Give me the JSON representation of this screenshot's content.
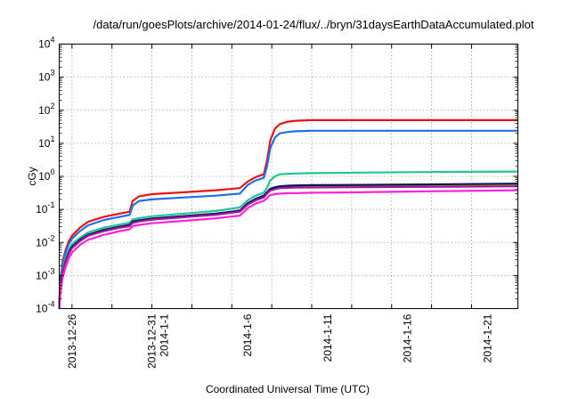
{
  "chart_data": {
    "type": "line",
    "title": "/data/run/goesPlots/archive/2014-01-24/flux/../bryn/31daysEarthDataAccumulated.plot",
    "xlabel": "Coordinated Universal Time (UTC)",
    "ylabel": "cGy",
    "yscale": "log",
    "ylim": [
      0.0001,
      10000
    ],
    "xlim": [
      -0.8,
      27.9
    ],
    "grid": true,
    "legend": "none",
    "y_ticks": [
      {
        "value": 0.0001,
        "base": "10",
        "exp": "-4"
      },
      {
        "value": 0.001,
        "base": "10",
        "exp": "-3"
      },
      {
        "value": 0.01,
        "base": "10",
        "exp": "-2"
      },
      {
        "value": 0.1,
        "base": "10",
        "exp": "-1"
      },
      {
        "value": 1,
        "base": "10",
        "exp": "0"
      },
      {
        "value": 10,
        "base": "10",
        "exp": "1"
      },
      {
        "value": 100,
        "base": "10",
        "exp": "2"
      },
      {
        "value": 1000,
        "base": "10",
        "exp": "3"
      },
      {
        "value": 10000,
        "base": "10",
        "exp": "4"
      }
    ],
    "x_ticks": [
      {
        "value": 0,
        "label": "2013-12-26",
        "sub": ""
      },
      {
        "value": 5,
        "label": "2013-12-31",
        "sub": "2014-1-1"
      },
      {
        "value": 11,
        "label": "2014-1-6",
        "sub": ""
      },
      {
        "value": 16,
        "label": "2014-1-11",
        "sub": ""
      },
      {
        "value": 21,
        "label": "2014-1-16",
        "sub": ""
      },
      {
        "value": 26,
        "label": "2014-1-21",
        "sub": ""
      }
    ],
    "x_grid": [
      0,
      2.5,
      5,
      7.5,
      10,
      12.5,
      15,
      17.5,
      20,
      22.5,
      25
    ],
    "series": [
      {
        "name": "red",
        "color": "#ee1111",
        "x": [
          -0.8,
          -0.75,
          -0.6,
          -0.4,
          -0.2,
          0,
          0.5,
          1,
          2,
          3,
          3.6,
          3.8,
          4.2,
          5,
          7,
          9,
          10.5,
          11.0,
          11.5,
          12.0,
          12.2,
          12.4,
          12.7,
          13,
          13.5,
          14,
          15,
          18,
          22,
          27.9
        ],
        "y": [
          0.0001,
          0.0006,
          0.0025,
          0.006,
          0.011,
          0.016,
          0.028,
          0.042,
          0.06,
          0.075,
          0.085,
          0.18,
          0.25,
          0.29,
          0.33,
          0.38,
          0.44,
          0.7,
          0.95,
          1.15,
          3,
          12,
          28,
          38,
          45,
          48,
          50,
          50,
          50,
          50
        ]
      },
      {
        "name": "blue",
        "color": "#1f6fe8",
        "x": [
          -0.8,
          -0.75,
          -0.6,
          -0.4,
          -0.2,
          0,
          0.5,
          1,
          2,
          3,
          3.6,
          3.8,
          4.2,
          5,
          7,
          9,
          10.5,
          11.0,
          11.5,
          12.0,
          12.2,
          12.4,
          12.7,
          13,
          13.5,
          14,
          15,
          18,
          22,
          27.9
        ],
        "y": [
          0.0001,
          0.0005,
          0.002,
          0.005,
          0.009,
          0.013,
          0.022,
          0.033,
          0.048,
          0.06,
          0.068,
          0.13,
          0.18,
          0.2,
          0.23,
          0.26,
          0.3,
          0.55,
          0.75,
          0.9,
          2,
          7,
          15,
          20,
          22,
          23,
          24,
          24,
          24,
          24
        ]
      },
      {
        "name": "green",
        "color": "#22c49a",
        "x": [
          -0.8,
          -0.75,
          -0.6,
          -0.4,
          -0.2,
          0,
          0.5,
          1,
          2,
          3,
          3.6,
          3.8,
          4.2,
          5,
          7,
          9,
          10.5,
          11.0,
          11.5,
          12.0,
          12.2,
          12.4,
          12.7,
          13,
          13.5,
          14,
          15,
          18,
          22,
          27.9
        ],
        "y": [
          0.0001,
          0.0004,
          0.0015,
          0.0035,
          0.006,
          0.009,
          0.014,
          0.02,
          0.028,
          0.035,
          0.04,
          0.05,
          0.055,
          0.062,
          0.075,
          0.09,
          0.115,
          0.19,
          0.26,
          0.32,
          0.45,
          0.75,
          1.0,
          1.15,
          1.2,
          1.22,
          1.25,
          1.3,
          1.35,
          1.4
        ]
      },
      {
        "name": "olive",
        "color": "#b5a400",
        "x": [
          -0.8,
          -0.75,
          -0.6,
          -0.4,
          -0.2,
          0,
          0.5,
          1,
          2,
          3,
          3.6,
          3.8,
          4.2,
          5,
          7,
          9,
          10.5,
          11.0,
          11.5,
          12.0,
          12.2,
          12.4,
          12.7,
          13,
          13.5,
          14,
          15,
          18,
          22,
          27.9
        ],
        "y": [
          0.0001,
          0.0003,
          0.0012,
          0.0028,
          0.005,
          0.0075,
          0.012,
          0.017,
          0.024,
          0.03,
          0.034,
          0.042,
          0.046,
          0.052,
          0.062,
          0.074,
          0.09,
          0.15,
          0.2,
          0.25,
          0.32,
          0.4,
          0.45,
          0.48,
          0.5,
          0.5,
          0.51,
          0.52,
          0.54,
          0.57
        ]
      },
      {
        "name": "navy",
        "color": "#101060",
        "x": [
          -0.8,
          -0.75,
          -0.6,
          -0.4,
          -0.2,
          0,
          0.5,
          1,
          2,
          3,
          3.6,
          3.8,
          4.2,
          5,
          7,
          9,
          10.5,
          11.0,
          11.5,
          12.0,
          12.2,
          12.4,
          12.7,
          13,
          13.5,
          14,
          15,
          18,
          22,
          27.9
        ],
        "y": [
          0.0001,
          0.0003,
          0.0012,
          0.0028,
          0.005,
          0.0075,
          0.012,
          0.017,
          0.024,
          0.03,
          0.034,
          0.043,
          0.047,
          0.053,
          0.063,
          0.075,
          0.092,
          0.155,
          0.21,
          0.26,
          0.33,
          0.42,
          0.47,
          0.5,
          0.52,
          0.53,
          0.54,
          0.55,
          0.57,
          0.6
        ]
      },
      {
        "name": "purple",
        "color": "#9a1a9a",
        "x": [
          -0.8,
          -0.75,
          -0.6,
          -0.4,
          -0.2,
          0,
          0.5,
          1,
          2,
          3,
          3.6,
          3.8,
          4.2,
          5,
          7,
          9,
          10.5,
          11.0,
          11.5,
          12.0,
          12.2,
          12.4,
          12.7,
          13,
          13.5,
          14,
          15,
          18,
          22,
          27.9
        ],
        "y": [
          0.0001,
          0.00028,
          0.0011,
          0.0026,
          0.0046,
          0.0068,
          0.011,
          0.016,
          0.022,
          0.028,
          0.031,
          0.039,
          0.043,
          0.049,
          0.058,
          0.069,
          0.085,
          0.14,
          0.19,
          0.23,
          0.3,
          0.37,
          0.41,
          0.44,
          0.45,
          0.46,
          0.46,
          0.47,
          0.48,
          0.5
        ]
      },
      {
        "name": "magenta",
        "color": "#ff22dd",
        "x": [
          -0.8,
          -0.75,
          -0.6,
          -0.4,
          -0.2,
          0,
          0.5,
          1,
          2,
          3,
          3.6,
          3.8,
          4.2,
          5,
          7,
          9,
          10.5,
          11.0,
          11.5,
          12.0,
          12.2,
          12.4,
          12.7,
          13,
          13.5,
          14,
          15,
          18,
          22,
          27.9
        ],
        "y": [
          0.0001,
          0.00022,
          0.0008,
          0.0018,
          0.0033,
          0.005,
          0.0085,
          0.012,
          0.017,
          0.022,
          0.025,
          0.031,
          0.034,
          0.038,
          0.045,
          0.054,
          0.065,
          0.11,
          0.15,
          0.18,
          0.22,
          0.27,
          0.29,
          0.3,
          0.31,
          0.31,
          0.32,
          0.33,
          0.35,
          0.38
        ]
      }
    ]
  }
}
